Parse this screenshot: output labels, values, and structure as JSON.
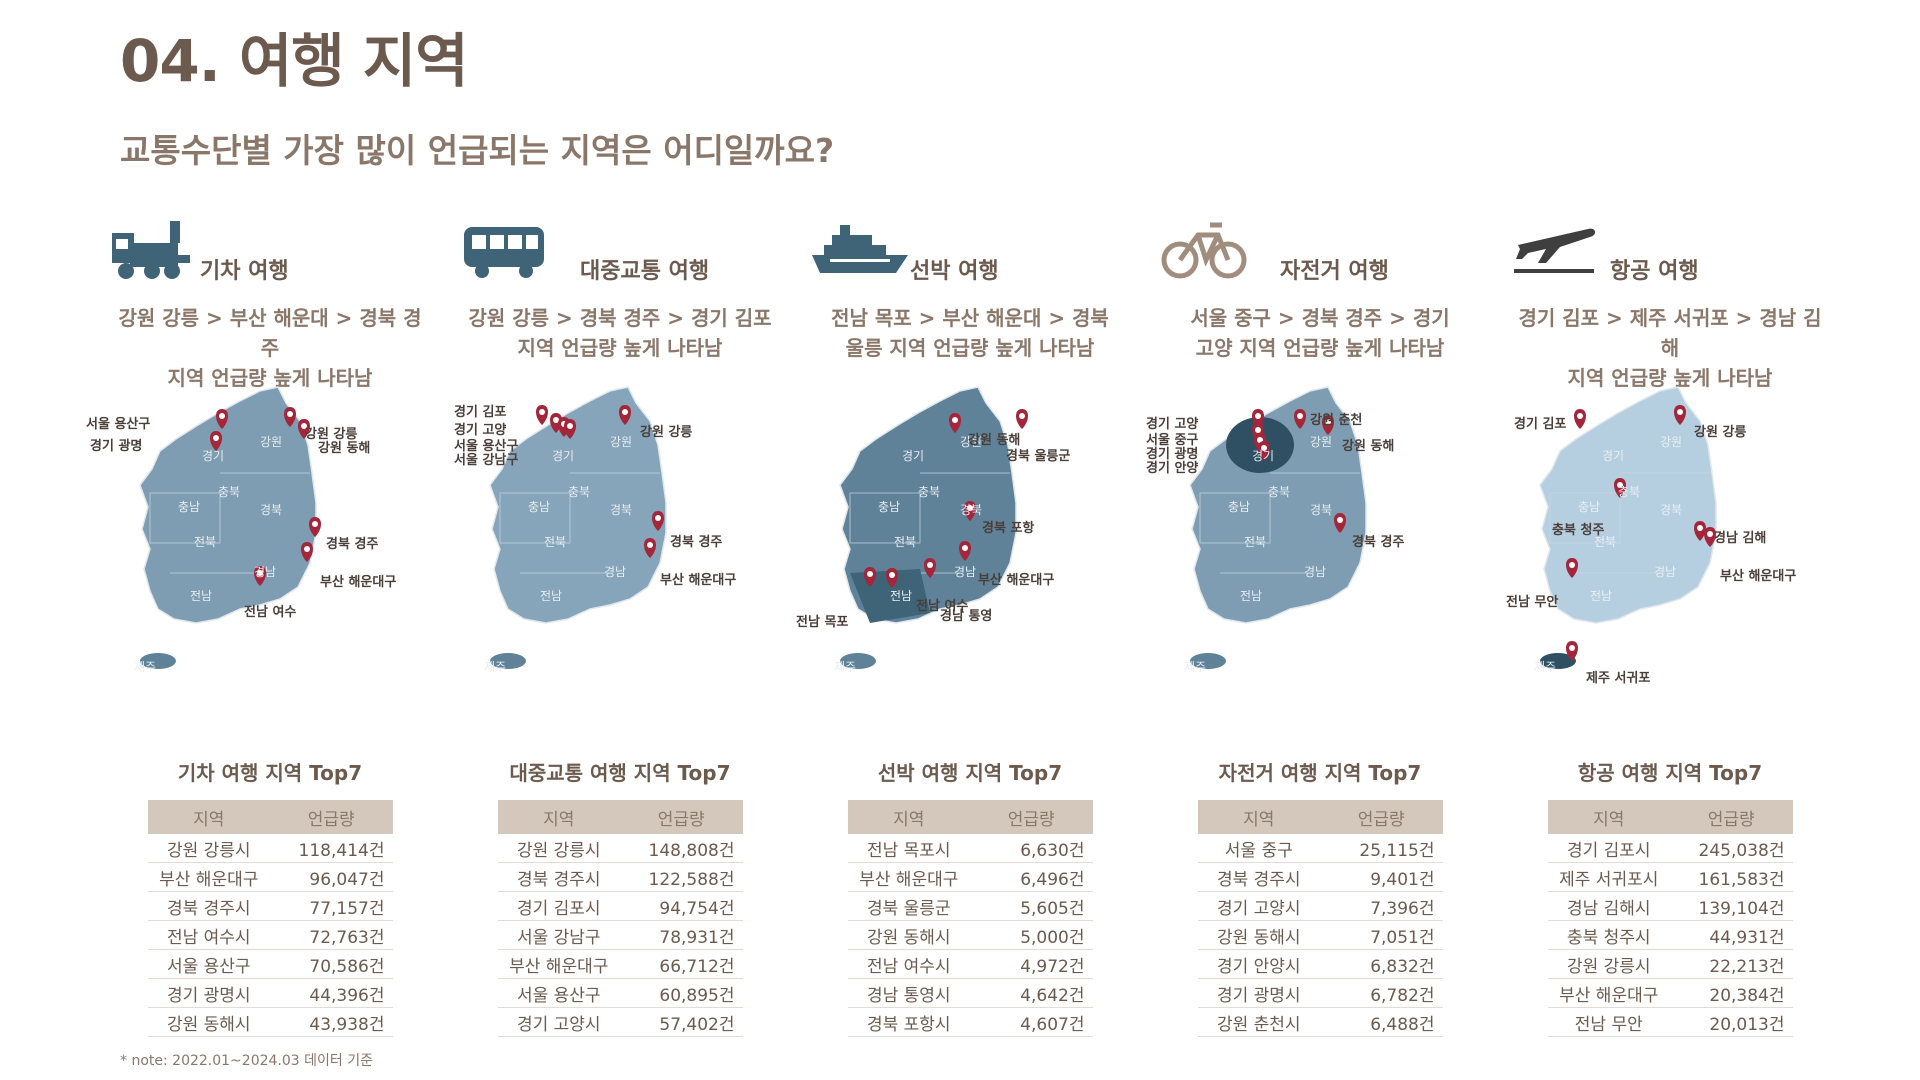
{
  "page": {
    "title": "04. 여행 지역",
    "subtitle": "교통수단별 가장 많이 언급되는 지역은 어디일까요?",
    "note": "* note: 2022.01~2024.03 데이터 기준"
  },
  "colors": {
    "accent": "#a3263a",
    "map_dark": "#3f6478",
    "map_mid": "#7f9db2",
    "map_light": "#b6cfe0",
    "text": "#6b5a4d",
    "table_header": "#d4c8bd"
  },
  "table_header": {
    "region": "지역",
    "count": "언급량"
  },
  "columns": [
    {
      "icon": "train-icon",
      "label": "기차 여행",
      "summary": "강원 강릉 > 부산 해운대 > 경북 경주\n지역 언급량 높게 나타남",
      "map_pins": [
        "서울 용산구",
        "경기 광명",
        "강원 강릉",
        "강원 동해",
        "경북 경주",
        "부산 해운대구",
        "전남 여수"
      ],
      "table_title": "기차 여행 지역 Top7",
      "rows": [
        {
          "region": "강원 강릉시",
          "count": "118,414건"
        },
        {
          "region": "부산 해운대구",
          "count": "96,047건"
        },
        {
          "region": "경북 경주시",
          "count": "77,157건"
        },
        {
          "region": "전남 여수시",
          "count": "72,763건"
        },
        {
          "region": "서울 용산구",
          "count": "70,586건"
        },
        {
          "region": "경기 광명시",
          "count": "44,396건"
        },
        {
          "region": "강원 동해시",
          "count": "43,938건"
        }
      ]
    },
    {
      "icon": "bus-icon",
      "label": "대중교통 여행",
      "summary": "강원 강릉 > 경북 경주 > 경기 김포\n지역 언급량 높게 나타남",
      "map_pins": [
        "경기 김포",
        "경기 고양",
        "서울 용산구",
        "서울 강남구",
        "강원 강릉",
        "경북 경주",
        "부산 해운대구"
      ],
      "table_title": "대중교통 여행 지역 Top7",
      "rows": [
        {
          "region": "강원 강릉시",
          "count": "148,808건"
        },
        {
          "region": "경북 경주시",
          "count": "122,588건"
        },
        {
          "region": "경기 김포시",
          "count": "94,754건"
        },
        {
          "region": "서울 강남구",
          "count": "78,931건"
        },
        {
          "region": "부산 해운대구",
          "count": "66,712건"
        },
        {
          "region": "서울 용산구",
          "count": "60,895건"
        },
        {
          "region": "경기 고양시",
          "count": "57,402건"
        }
      ]
    },
    {
      "icon": "ship-icon",
      "label": "선박 여행",
      "summary": "전남 목포 > 부산 해운대 > 경북\n울릉 지역 언급량 높게 나타남",
      "map_pins": [
        "강원 동해",
        "경북 울릉군",
        "경북 포항",
        "부산 해운대구",
        "경남 통영",
        "전남 여수",
        "전남 목포"
      ],
      "table_title": "선박 여행 지역 Top7",
      "rows": [
        {
          "region": "전남 목포시",
          "count": "6,630건"
        },
        {
          "region": "부산 해운대구",
          "count": "6,496건"
        },
        {
          "region": "경북 울릉군",
          "count": "5,605건"
        },
        {
          "region": "강원 동해시",
          "count": "5,000건"
        },
        {
          "region": "전남 여수시",
          "count": "4,972건"
        },
        {
          "region": "경남 통영시",
          "count": "4,642건"
        },
        {
          "region": "경북 포항시",
          "count": "4,607건"
        }
      ]
    },
    {
      "icon": "bicycle-icon",
      "label": "자전거 여행",
      "summary": "서울 중구 > 경북 경주 > 경기\n고양 지역 언급량 높게 나타남",
      "map_pins": [
        "경기 고양",
        "서울 중구",
        "경기 광명",
        "경기 안양",
        "강원 춘천",
        "강원 동해",
        "경북 경주"
      ],
      "table_title": "자전거 여행 지역 Top7",
      "rows": [
        {
          "region": "서울 중구",
          "count": "25,115건"
        },
        {
          "region": "경북 경주시",
          "count": "9,401건"
        },
        {
          "region": "경기 고양시",
          "count": "7,396건"
        },
        {
          "region": "강원 동해시",
          "count": "7,051건"
        },
        {
          "region": "경기 안양시",
          "count": "6,832건"
        },
        {
          "region": "경기 광명시",
          "count": "6,782건"
        },
        {
          "region": "강원 춘천시",
          "count": "6,488건"
        }
      ]
    },
    {
      "icon": "airplane-icon",
      "label": "항공 여행",
      "summary": "경기 김포 > 제주 서귀포 > 경남 김해\n지역 언급량 높게 나타남",
      "map_pins": [
        "경기 김포",
        "강원 강릉",
        "충북 청주",
        "경남 김해",
        "부산 해운대구",
        "전남 무안",
        "제주 서귀포"
      ],
      "table_title": "항공 여행 지역 Top7",
      "rows": [
        {
          "region": "경기 김포시",
          "count": "245,038건"
        },
        {
          "region": "제주 서귀포시",
          "count": "161,583건"
        },
        {
          "region": "경남 김해시",
          "count": "139,104건"
        },
        {
          "region": "충북 청주시",
          "count": "44,931건"
        },
        {
          "region": "강원 강릉시",
          "count": "22,213건"
        },
        {
          "region": "부산 해운대구",
          "count": "20,384건"
        },
        {
          "region": "전남 무안",
          "count": "20,013건"
        }
      ]
    }
  ],
  "map_region_labels": [
    "경기",
    "강원",
    "충북",
    "충남",
    "경북",
    "전북",
    "경남",
    "전남",
    "제주"
  ]
}
